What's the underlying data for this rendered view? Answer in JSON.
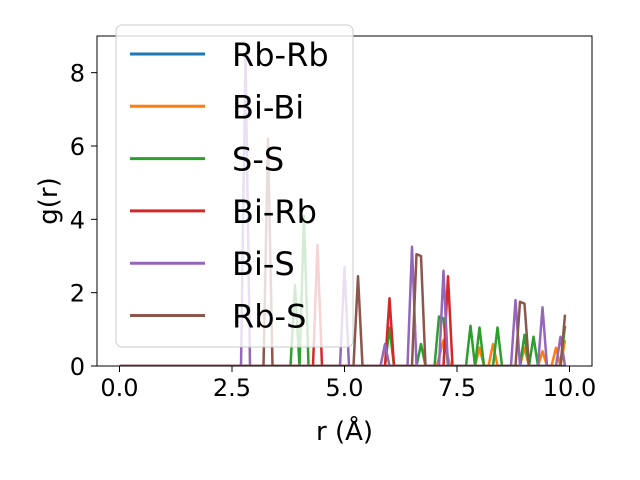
{
  "chart_data": {
    "type": "line",
    "title": "",
    "xlabel": "r (Å)",
    "ylabel": "g(r)",
    "xlim": [
      -0.5,
      10.5
    ],
    "ylim": [
      0,
      9
    ],
    "xticks": [
      "0.0",
      "2.5",
      "5.0",
      "7.5",
      "10.0"
    ],
    "yticks": [
      "0",
      "2",
      "4",
      "6",
      "8"
    ],
    "grid": false,
    "legend_position": "upper-left",
    "series": [
      {
        "name": "Rb-Rb",
        "color": "#1f77b4",
        "x": [
          0,
          9.9
        ],
        "y": [
          0,
          0
        ]
      },
      {
        "name": "Bi-Bi",
        "color": "#ff7f0e",
        "x": [
          0,
          7.05,
          7.2,
          7.35,
          7.9,
          8.0,
          8.1,
          8.2,
          8.3,
          8.4,
          8.9,
          9.0,
          9.1,
          9.3,
          9.4,
          9.5,
          9.6,
          9.7,
          9.8,
          9.9
        ],
        "y": [
          0,
          0,
          0.7,
          0,
          0,
          0.5,
          0,
          0,
          0.6,
          0,
          0,
          0.5,
          0,
          0,
          0.4,
          0,
          0,
          0.5,
          0,
          0.7
        ]
      },
      {
        "name": "S-S",
        "color": "#2ca02c",
        "x": [
          0,
          3.8,
          3.9,
          4.0,
          4.1,
          4.2,
          4.3,
          5.9,
          6.0,
          6.1,
          6.6,
          6.7,
          6.8,
          7.0,
          7.1,
          7.2,
          7.3,
          7.7,
          7.8,
          7.9,
          8.0,
          8.1,
          8.3,
          8.4,
          8.5,
          8.9,
          9.0,
          9.1,
          9.2,
          9.3,
          9.4,
          9.8,
          9.9
        ],
        "y": [
          0,
          0,
          2.2,
          0,
          4.1,
          0,
          0,
          0,
          1.05,
          0,
          0,
          0.6,
          0,
          0,
          1.35,
          1.3,
          0,
          0,
          1.1,
          0,
          1.05,
          0,
          0,
          1.05,
          0,
          0,
          0.85,
          0,
          0.8,
          0,
          0,
          0,
          1.1
        ]
      },
      {
        "name": "Bi-Rb",
        "color": "#d62728",
        "x": [
          0,
          4.3,
          4.4,
          4.5,
          5.9,
          6.0,
          6.1,
          7.2,
          7.3,
          7.4
        ],
        "y": [
          0,
          0,
          3.3,
          0,
          0,
          1.85,
          0,
          0,
          2.45,
          0
        ]
      },
      {
        "name": "Bi-S",
        "color": "#9467bd",
        "x": [
          0,
          2.7,
          2.8,
          2.9,
          4.9,
          5.0,
          5.1,
          5.8,
          5.9,
          6.0,
          6.4,
          6.5,
          6.6,
          7.1,
          7.2,
          7.3,
          8.7,
          8.8,
          8.9,
          9.3,
          9.4,
          9.5,
          9.7,
          9.8,
          9.9
        ],
        "y": [
          0,
          0,
          8.5,
          0,
          0,
          2.7,
          0,
          0,
          0.6,
          0,
          0,
          3.25,
          0,
          0,
          2.6,
          0,
          0,
          1.8,
          0,
          0,
          1.6,
          0,
          0,
          0.8,
          0
        ]
      },
      {
        "name": "Rb-S",
        "color": "#8c564b",
        "x": [
          0,
          3.2,
          3.3,
          3.4,
          5.2,
          5.3,
          5.4,
          6.5,
          6.6,
          6.7,
          6.8,
          8.8,
          8.9,
          9.0,
          9.1,
          9.8,
          9.9
        ],
        "y": [
          0,
          0,
          6.2,
          0,
          0,
          2.45,
          0,
          0,
          3.05,
          3.0,
          0,
          0,
          1.75,
          1.7,
          0,
          0,
          1.4
        ]
      }
    ]
  }
}
